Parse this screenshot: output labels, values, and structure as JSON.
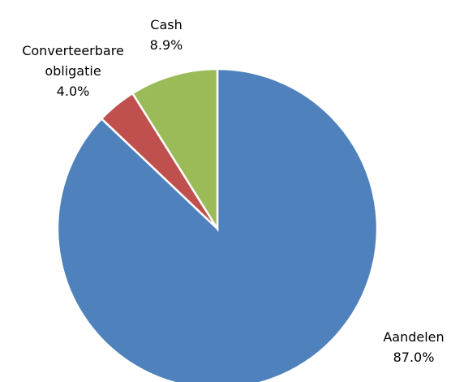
{
  "chart_data": {
    "type": "pie",
    "categories": [
      "Aandelen",
      "Converteerbare obligatie",
      "Cash"
    ],
    "values": [
      87.0,
      4.0,
      8.9
    ],
    "value_labels": [
      "87.0%",
      "4.0%",
      "8.9%"
    ],
    "colors": [
      "#4f81bd",
      "#c0504d",
      "#9bbb59"
    ]
  }
}
